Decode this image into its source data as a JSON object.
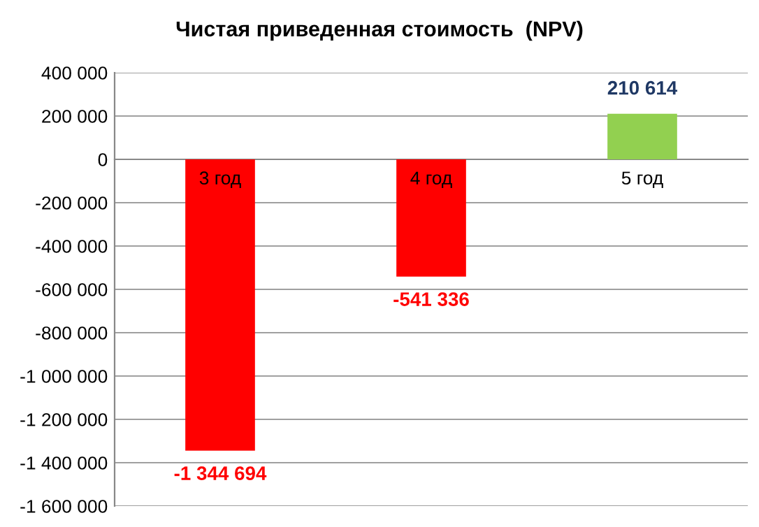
{
  "chart_data": {
    "type": "bar",
    "title": "Чистая приведенная стоимость  (NPV)",
    "categories": [
      "3 год",
      "4 год",
      "5 год"
    ],
    "values": [
      -1344694,
      -541336,
      210614
    ],
    "colors": [
      "#ff0000",
      "#ff0000",
      "#92d050"
    ],
    "value_labels": [
      "-1 344 694",
      "-541 336",
      "210 614"
    ],
    "ylim": [
      -1600000,
      400000
    ],
    "yticks": [
      {
        "value": -1600000,
        "label": "-1 600 000"
      },
      {
        "value": -1400000,
        "label": "-1 400 000"
      },
      {
        "value": -1200000,
        "label": "-1 200 000"
      },
      {
        "value": -1000000,
        "label": "-1 000 000"
      },
      {
        "value": -800000,
        "label": "-800 000"
      },
      {
        "value": -600000,
        "label": "-600 000"
      },
      {
        "value": -400000,
        "label": "-400 000"
      },
      {
        "value": -200000,
        "label": "-200 000"
      },
      {
        "value": 0,
        "label": "0"
      },
      {
        "value": 200000,
        "label": "200 000"
      },
      {
        "value": 400000,
        "label": "400 000"
      }
    ],
    "grid": "y",
    "legend": false
  }
}
